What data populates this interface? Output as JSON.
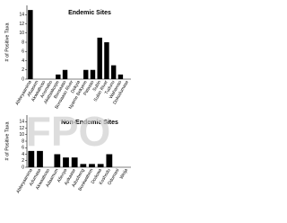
{
  "watermark": "FPO",
  "chart_data": [
    {
      "type": "bar",
      "title": "Endemic Sites",
      "y_label": "# of Positive Taxa",
      "categories": [
        "Abbeyaanima",
        "Afuasem",
        "Akwaaboso",
        "Anomabo",
        "Akatsiakorpe",
        "Bonsaaso",
        "Bonsaaso River",
        "Dokyia",
        "Nyame Bekyere",
        "Patasso",
        "Subin",
        "Subin River",
        "Tudunu",
        "Wahamso",
        "Dokodumase"
      ],
      "values": [
        15,
        0,
        0,
        0,
        1,
        2,
        0,
        0,
        2,
        2,
        9,
        8,
        3,
        1,
        0
      ],
      "color": "#000000",
      "ylim": [
        0,
        16
      ],
      "yticks": [
        0,
        2,
        4,
        6,
        8,
        10,
        12,
        14
      ]
    },
    {
      "type": "bar",
      "title": "Non-Endemic Sites",
      "y_label": "# of Positive Taxa",
      "categories": [
        "Abbeyaanima",
        "Adumasa",
        "Akwaaboso",
        "Adaamum",
        "Afienya",
        "Ayikaase",
        "Aduobeng",
        "Bonkwabem",
        "Dodowa",
        "Koshodu",
        "Odumasi",
        "Weija"
      ],
      "values": [
        5,
        5,
        0,
        4,
        3,
        3,
        1,
        1,
        1,
        4,
        0,
        0
      ],
      "color": "#000000",
      "ylim": [
        0,
        16
      ],
      "yticks": [
        0,
        2,
        4,
        6,
        8,
        10,
        12,
        14
      ]
    }
  ]
}
